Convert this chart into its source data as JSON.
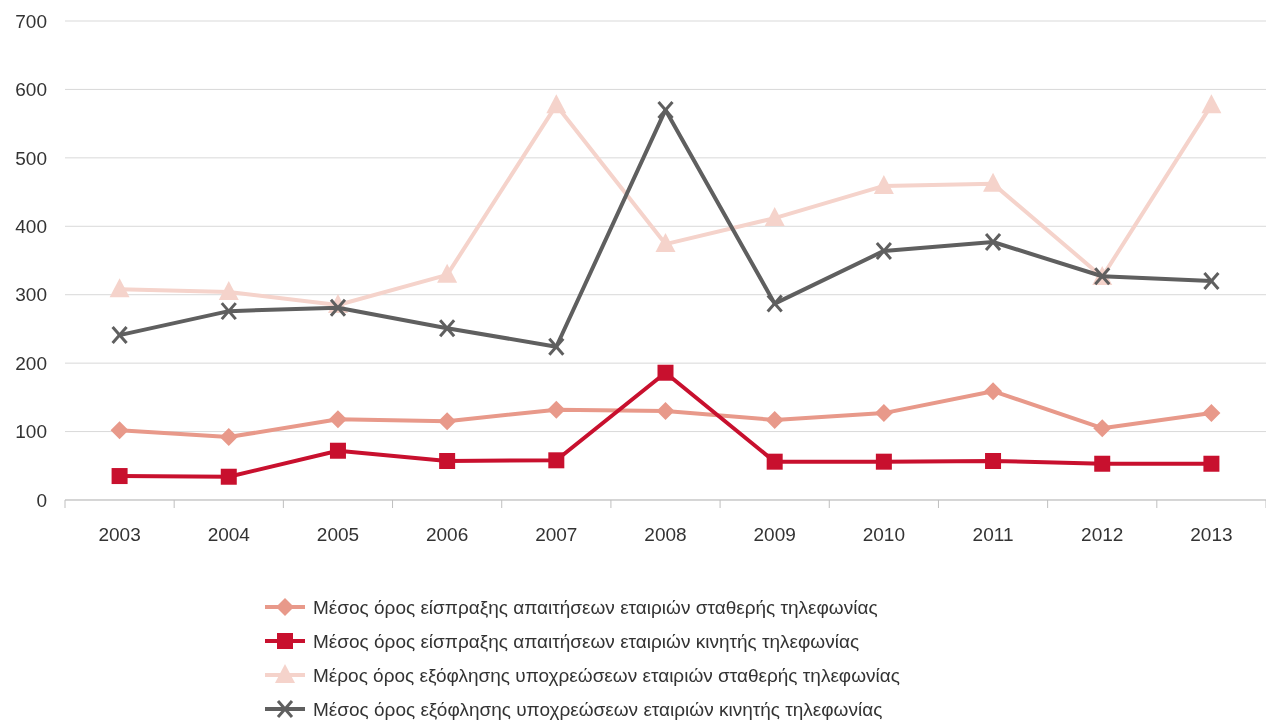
{
  "chart_data": {
    "type": "line",
    "categories": [
      "2003",
      "2004",
      "2005",
      "2006",
      "2007",
      "2008",
      "2009",
      "2010",
      "2011",
      "2012",
      "2013"
    ],
    "series": [
      {
        "name": "Μέσος όρος είσπραξης απαιτήσεων εταιριών σταθερής τηλεφωνίας",
        "color": "#e8998a",
        "marker": "diamond",
        "values": [
          102,
          92,
          118,
          115,
          132,
          130,
          117,
          127,
          159,
          105,
          127
        ]
      },
      {
        "name": "Μέσος όρος είσπραξης απαιτήσεων εταιριών κινητής τηλεφωνίας",
        "color": "#c8102e",
        "marker": "square",
        "values": [
          35,
          34,
          72,
          57,
          58,
          186,
          56,
          56,
          57,
          53,
          53
        ]
      },
      {
        "name": "Μέρος όρος εξόφλησης υποχρεώσεων εταιριών σταθερής τηλεφωνίας",
        "color": "#f5d3cb",
        "marker": "triangle",
        "values": [
          308,
          304,
          285,
          329,
          577,
          374,
          412,
          459,
          462,
          326,
          577
        ]
      },
      {
        "name": "Μέσος όρος εξόφλησης υποχρεώσεων εταιριών κινητής τηλεφωνίας",
        "color": "#5f5f5f",
        "marker": "cross",
        "values": [
          241,
          276,
          281,
          251,
          224,
          570,
          287,
          364,
          377,
          327,
          320
        ]
      }
    ],
    "ylim": [
      0,
      700
    ],
    "yticks": [
      0,
      100,
      200,
      300,
      400,
      500,
      600,
      700
    ],
    "grid": "y",
    "legend": "bottom",
    "line_style": "solid"
  }
}
